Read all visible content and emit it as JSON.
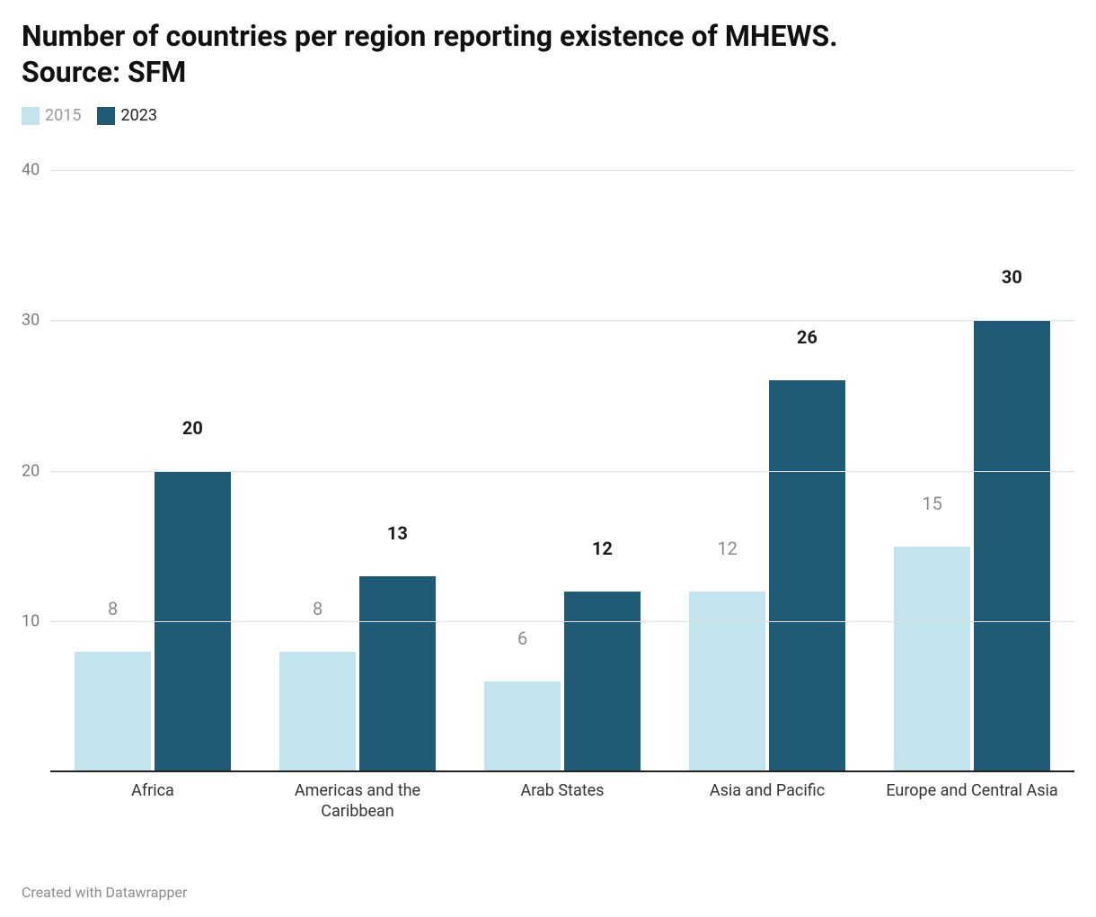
{
  "title": "Number of countries per region reporting existence of MHEWS. Source: SFM",
  "footer": "Created with Datawrapper",
  "chart": {
    "type": "bar-grouped",
    "background_color": "#ffffff",
    "grid_color": "#e1e1e1",
    "baseline_color": "#222222",
    "ylim": [
      0,
      42
    ],
    "yticks": [
      10,
      20,
      30,
      40
    ],
    "ytick_fontsize": 18,
    "ytick_color": "#7a7a7a",
    "title_fontsize": 32,
    "legend_fontsize": 18,
    "xlabel_fontsize": 18,
    "bar_label_fontsize": 20,
    "series": [
      {
        "name": "2015",
        "color": "#c1e4ed",
        "label_color": "#8c8c8c",
        "label_weight": "400",
        "legend_text_color": "#999999"
      },
      {
        "name": "2023",
        "color": "#1f5a76",
        "label_color": "#1c1c1c",
        "label_weight": "700",
        "legend_text_color": "#222222"
      }
    ],
    "categories": [
      "Africa",
      "Americas and the Caribbean",
      "Arab States",
      "Asia and Pacific",
      "Europe and Central Asia"
    ],
    "values": [
      [
        8,
        20
      ],
      [
        8,
        13
      ],
      [
        6,
        12
      ],
      [
        12,
        26
      ],
      [
        15,
        30
      ]
    ]
  }
}
